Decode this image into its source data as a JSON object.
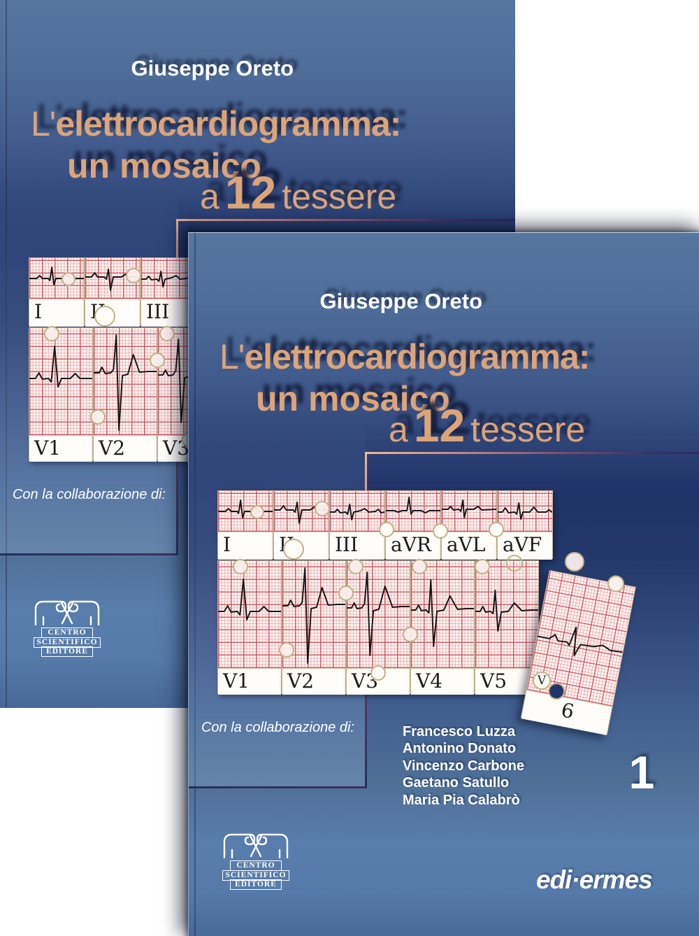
{
  "cover": {
    "author": "Giuseppe Oreto",
    "title": {
      "l1_prefix": "L'",
      "l1_main": "elettrocardiogramma",
      "l1_colon": ":",
      "l2": "un mosaico",
      "l3_a": "a",
      "l3_num": "12",
      "l3_b": "tessere"
    },
    "collaboration_label": "Con la collaborazione di:",
    "collaborators": [
      "Francesco Luzza",
      "Antonino Donato",
      "Vincenzo Carbone",
      "Gaetano Satullo",
      "Maria Pia Calabrò"
    ],
    "volume_number": "1",
    "publisher": "edi·ermes",
    "logo": {
      "line1": "CENTRO",
      "line2": "SCIENTIFICO",
      "line3": "EDITORE"
    },
    "ecg_leads_row1": [
      "I",
      "II",
      "III",
      "aVR",
      "aVL",
      "aVF"
    ],
    "ecg_leads_row2": [
      "V1",
      "V2",
      "V3",
      "V4",
      "V5"
    ],
    "detached_lead_label": "6",
    "partial_lead_letter": "V",
    "colors": {
      "title_accent": "#dca478",
      "cover_top_blue": "#56759f",
      "cover_navy": "#20336a",
      "cover_light_blue": "#597dac",
      "accent_line": "#f4b690",
      "ecg_grid_major": "#cb4d5c",
      "ecg_grid_minor": "#e7a2a6",
      "piece_border_tan": "#c6b48e",
      "text_white": "#ffffff"
    }
  }
}
